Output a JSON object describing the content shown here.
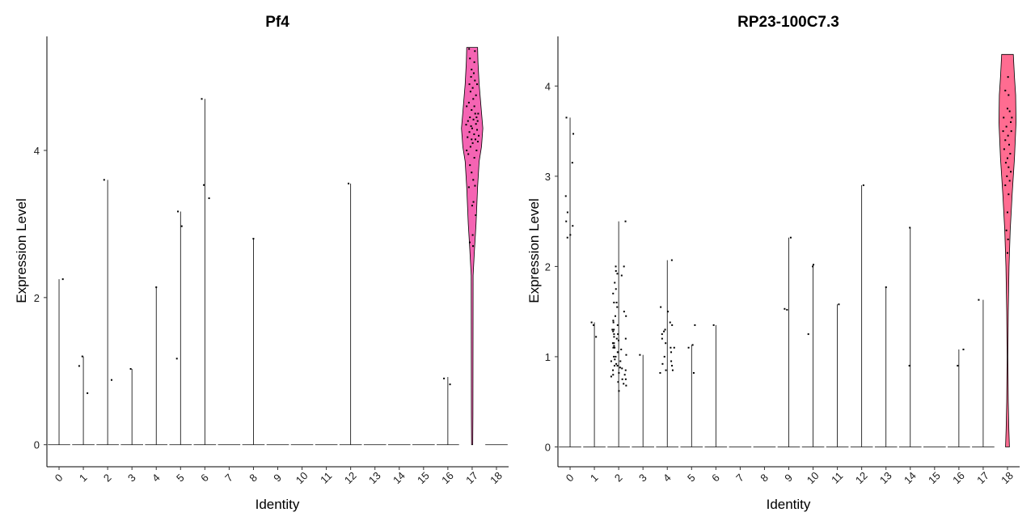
{
  "chart_data": [
    {
      "type": "violin",
      "title": "Pf4",
      "xlabel": "Identity",
      "ylabel": "Expression Level",
      "categories": [
        "0",
        "1",
        "2",
        "3",
        "4",
        "5",
        "6",
        "7",
        "8",
        "9",
        "10",
        "11",
        "12",
        "13",
        "14",
        "15",
        "16",
        "17",
        "18"
      ],
      "ylim": [
        -0.3,
        5.55
      ],
      "yticks": [
        0,
        2,
        4
      ],
      "fill_color": "#F564B3",
      "max_values": [
        2.25,
        1.2,
        3.6,
        1.03,
        2.15,
        3.17,
        4.7,
        0,
        2.8,
        0,
        0,
        0,
        3.55,
        0,
        0,
        0,
        0.92,
        5.4,
        0
      ],
      "outlier_points": [
        [
          0,
          2.25
        ],
        [
          1,
          0.7
        ],
        [
          1,
          1.07
        ],
        [
          1,
          1.2
        ],
        [
          2,
          0.88
        ],
        [
          2,
          3.6
        ],
        [
          3,
          1.03
        ],
        [
          4,
          2.14
        ],
        [
          5,
          2.97
        ],
        [
          5,
          3.17
        ],
        [
          5,
          1.17
        ],
        [
          6,
          3.35
        ],
        [
          6,
          3.53
        ],
        [
          6,
          4.7
        ],
        [
          8,
          2.8
        ],
        [
          12,
          3.55
        ],
        [
          16,
          0.9
        ],
        [
          16,
          0.82
        ]
      ],
      "violin": {
        "category": "17",
        "min": 0,
        "max": 5.4,
        "profile": [
          [
            0,
            0.03
          ],
          [
            0.4,
            0.04
          ],
          [
            2.3,
            0.05
          ],
          [
            2.65,
            0.12
          ],
          [
            3.0,
            0.2
          ],
          [
            3.5,
            0.28
          ],
          [
            3.85,
            0.36
          ],
          [
            4.05,
            0.48
          ],
          [
            4.3,
            0.55
          ],
          [
            4.55,
            0.47
          ],
          [
            4.9,
            0.36
          ],
          [
            5.2,
            0.3
          ],
          [
            5.4,
            0.28
          ]
        ],
        "points": [
          [
            3.5,
            -0.3
          ],
          [
            3.52,
            0.26
          ],
          [
            3.12,
            0.33
          ],
          [
            2.75,
            -0.22
          ],
          [
            2.85,
            0.05
          ],
          [
            3.3,
            0.12
          ],
          [
            3.7,
            -0.05
          ],
          [
            3.9,
            0.2
          ],
          [
            3.95,
            -0.35
          ],
          [
            4.0,
            0.4
          ],
          [
            4.05,
            -0.15
          ],
          [
            4.1,
            0.05
          ],
          [
            4.15,
            0.3
          ],
          [
            4.18,
            -0.42
          ],
          [
            4.22,
            0.18
          ],
          [
            4.25,
            -0.25
          ],
          [
            4.28,
            0.45
          ],
          [
            4.3,
            0.0
          ],
          [
            4.33,
            -0.1
          ],
          [
            4.36,
            0.35
          ],
          [
            4.4,
            -0.38
          ],
          [
            4.42,
            0.12
          ],
          [
            4.45,
            -0.2
          ],
          [
            4.5,
            0.28
          ],
          [
            4.55,
            -0.05
          ],
          [
            4.6,
            0.2
          ],
          [
            4.65,
            -0.3
          ],
          [
            4.7,
            0.1
          ],
          [
            4.75,
            0.35
          ],
          [
            4.8,
            -0.15
          ],
          [
            4.85,
            0.05
          ],
          [
            4.9,
            -0.25
          ],
          [
            4.95,
            0.25
          ],
          [
            5.0,
            -0.1
          ],
          [
            5.05,
            0.15
          ],
          [
            5.1,
            -0.05
          ],
          [
            5.2,
            0.2
          ],
          [
            5.25,
            -0.2
          ],
          [
            5.35,
            0.25
          ],
          [
            5.38,
            -0.28
          ],
          [
            4.35,
            -0.55
          ],
          [
            4.2,
            0.6
          ],
          [
            4.5,
            0.55
          ],
          [
            3.6,
            0.1
          ],
          [
            3.8,
            -0.2
          ],
          [
            4.12,
            0.52
          ],
          [
            4.6,
            -0.5
          ],
          [
            4.4,
            0.5
          ],
          [
            3.25,
            0.0
          ],
          [
            2.7,
            0.08
          ],
          [
            4.0,
            -0.5
          ],
          [
            4.9,
            0.45
          ],
          [
            4.15,
            -0.05
          ],
          [
            4.45,
            0.4
          ]
        ]
      }
    },
    {
      "type": "violin",
      "title": "RP23-100C7.3",
      "xlabel": "Identity",
      "ylabel": "Expression Level",
      "categories": [
        "0",
        "1",
        "2",
        "3",
        "4",
        "5",
        "6",
        "7",
        "8",
        "9",
        "10",
        "11",
        "12",
        "13",
        "14",
        "15",
        "16",
        "17",
        "18"
      ],
      "ylim": [
        -0.22,
        4.55
      ],
      "yticks": [
        0,
        1,
        2,
        3,
        4
      ],
      "fill_color": "#FF6C91",
      "max_values": [
        3.65,
        1.38,
        2.5,
        1.02,
        2.07,
        1.13,
        1.35,
        0,
        0,
        2.32,
        2.02,
        1.58,
        2.9,
        1.77,
        2.43,
        0,
        1.08,
        1.63,
        4.35
      ],
      "outlier_points": [
        [
          0,
          3.65
        ],
        [
          0,
          3.47
        ],
        [
          0,
          3.15
        ],
        [
          0,
          2.78
        ],
        [
          0,
          2.6
        ],
        [
          0,
          2.5
        ],
        [
          0,
          2.45
        ],
        [
          0,
          2.32
        ],
        [
          0,
          2.35
        ],
        [
          1,
          1.22
        ],
        [
          1,
          1.38
        ],
        [
          1,
          1.35
        ],
        [
          3,
          1.02
        ],
        [
          5,
          1.13
        ],
        [
          5,
          1.1
        ],
        [
          5,
          0.82
        ],
        [
          5,
          1.35
        ],
        [
          6,
          1.35
        ],
        [
          9,
          2.32
        ],
        [
          9,
          1.52
        ],
        [
          9,
          1.53
        ],
        [
          10,
          2.02
        ],
        [
          10,
          2.0
        ],
        [
          10,
          1.25
        ],
        [
          11,
          1.58
        ],
        [
          12,
          2.9
        ],
        [
          13,
          1.77
        ],
        [
          14,
          2.43
        ],
        [
          14,
          0.9
        ],
        [
          16,
          1.08
        ],
        [
          16,
          0.9
        ],
        [
          17,
          1.63
        ]
      ],
      "clusters": [
        {
          "category": "2",
          "spread": 0.42,
          "values": [
            0.62,
            0.68,
            0.72,
            0.75,
            0.78,
            0.8,
            0.82,
            0.85,
            0.87,
            0.88,
            0.9,
            0.92,
            0.95,
            0.97,
            1.0,
            1.02,
            1.05,
            1.08,
            1.1,
            1.12,
            1.15,
            1.18,
            1.2,
            1.22,
            1.25,
            1.28,
            1.3,
            1.35,
            1.4,
            1.45,
            1.5,
            1.55,
            1.6,
            1.7,
            1.75,
            1.82,
            1.9,
            1.95,
            2.0,
            2.5,
            0.7,
            0.9,
            1.0,
            1.1,
            1.2,
            1.3,
            1.45,
            0.8,
            0.95,
            1.05,
            1.15,
            1.25,
            0.85,
            0.75,
            1.38,
            1.6,
            1.92,
            2.0
          ]
        },
        {
          "category": "4",
          "spread": 0.42,
          "values": [
            0.82,
            0.85,
            0.9,
            0.95,
            1.0,
            1.1,
            1.15,
            1.2,
            1.25,
            1.3,
            1.35,
            1.5,
            1.55,
            1.38,
            1.28,
            1.1,
            0.92,
            2.07,
            0.85,
            1.05
          ]
        }
      ],
      "violin": {
        "category": "18",
        "min": 0,
        "max": 4.35,
        "profile": [
          [
            0,
            0.1
          ],
          [
            0.2,
            0.07
          ],
          [
            0.5,
            0.04
          ],
          [
            1.0,
            0.02
          ],
          [
            1.5,
            0.04
          ],
          [
            2.0,
            0.08
          ],
          [
            2.4,
            0.14
          ],
          [
            2.8,
            0.24
          ],
          [
            3.2,
            0.36
          ],
          [
            3.6,
            0.44
          ],
          [
            3.9,
            0.42
          ],
          [
            4.1,
            0.36
          ],
          [
            4.35,
            0.3
          ]
        ],
        "points": [
          [
            3.65,
            -0.35
          ],
          [
            3.72,
            0.2
          ],
          [
            3.6,
            0.3
          ],
          [
            3.55,
            -0.1
          ],
          [
            3.5,
            0.35
          ],
          [
            3.45,
            0.05
          ],
          [
            3.4,
            -0.2
          ],
          [
            3.35,
            0.15
          ],
          [
            3.3,
            -0.3
          ],
          [
            3.25,
            0.25
          ],
          [
            3.2,
            0.0
          ],
          [
            3.15,
            -0.15
          ],
          [
            3.1,
            0.1
          ],
          [
            3.05,
            0.3
          ],
          [
            3.0,
            -0.05
          ],
          [
            2.95,
            0.2
          ],
          [
            2.9,
            -0.2
          ],
          [
            2.8,
            0.1
          ],
          [
            2.6,
            0.0
          ],
          [
            2.4,
            -0.1
          ],
          [
            2.3,
            0.05
          ],
          [
            2.15,
            0.0
          ],
          [
            3.9,
            0.1
          ],
          [
            3.95,
            -0.2
          ],
          [
            4.1,
            0.05
          ],
          [
            3.75,
            0.0
          ],
          [
            3.65,
            0.4
          ],
          [
            3.5,
            -0.4
          ]
        ]
      }
    }
  ]
}
